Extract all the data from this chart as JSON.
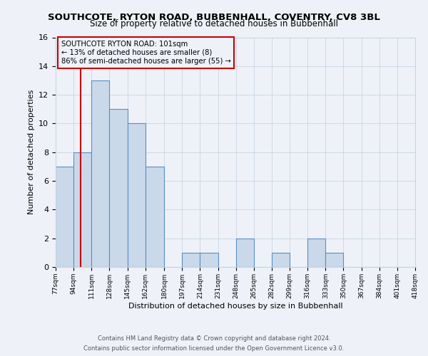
{
  "title": "SOUTHCOTE, RYTON ROAD, BUBBENHALL, COVENTRY, CV8 3BL",
  "subtitle": "Size of property relative to detached houses in Bubbenhall",
  "xlabel": "Distribution of detached houses by size in Bubbenhall",
  "ylabel": "Number of detached properties",
  "bin_edges": [
    77,
    94,
    111,
    128,
    145,
    162,
    180,
    197,
    214,
    231,
    248,
    265,
    282,
    299,
    316,
    333,
    350,
    367,
    384,
    401,
    418
  ],
  "bin_labels": [
    "77sqm",
    "94sqm",
    "111sqm",
    "128sqm",
    "145sqm",
    "162sqm",
    "180sqm",
    "197sqm",
    "214sqm",
    "231sqm",
    "248sqm",
    "265sqm",
    "282sqm",
    "299sqm",
    "316sqm",
    "333sqm",
    "350sqm",
    "367sqm",
    "384sqm",
    "401sqm",
    "418sqm"
  ],
  "counts": [
    7,
    8,
    13,
    11,
    10,
    7,
    0,
    1,
    1,
    0,
    2,
    0,
    1,
    0,
    2,
    1,
    0,
    0,
    0,
    0
  ],
  "bar_facecolor": "#c9d9ea",
  "bar_edgecolor": "#5b8ec4",
  "grid_color": "#c8d4e3",
  "background_color": "#eef2f8",
  "vline_x": 101,
  "vline_color": "#cc0000",
  "annotation_line1": "SOUTHCOTE RYTON ROAD: 101sqm",
  "annotation_line2": "← 13% of detached houses are smaller (8)",
  "annotation_line3": "86% of semi-detached houses are larger (55) →",
  "annotation_box_edgecolor": "#cc0000",
  "ylim": [
    0,
    16
  ],
  "yticks": [
    0,
    2,
    4,
    6,
    8,
    10,
    12,
    14,
    16
  ],
  "footer_line1": "Contains HM Land Registry data © Crown copyright and database right 2024.",
  "footer_line2": "Contains public sector information licensed under the Open Government Licence v3.0."
}
